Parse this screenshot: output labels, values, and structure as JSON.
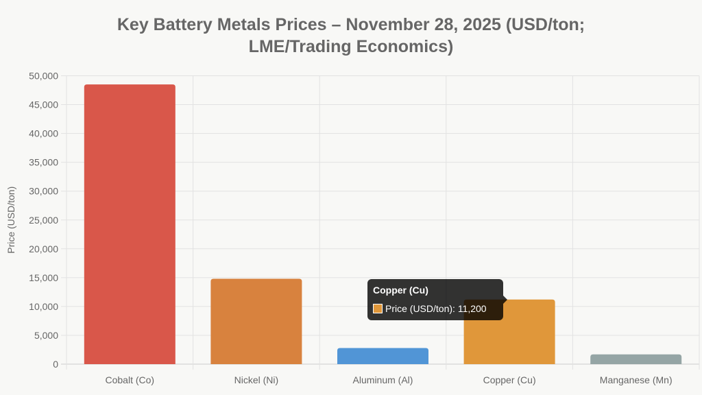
{
  "chart_data": {
    "type": "bar",
    "title_lines": [
      "Key Battery Metals Prices – November 28, 2025 (USD/ton;",
      "LME/Trading Economics)"
    ],
    "xlabel": "",
    "ylabel": "Price (USD/ton)",
    "categories": [
      "Cobalt (Co)",
      "Nickel (Ni)",
      "Aluminum (Al)",
      "Copper (Cu)",
      "Manganese (Mn)"
    ],
    "series": [
      {
        "name": "Price (USD/ton)",
        "values": [
          48500,
          14800,
          2800,
          11200,
          1700
        ]
      }
    ],
    "colors": [
      "#d9574a",
      "#d8823e",
      "#5195d6",
      "#e0973a",
      "#95a5a5"
    ],
    "ylim": [
      0,
      50000
    ],
    "yticks": [
      0,
      5000,
      10000,
      15000,
      20000,
      25000,
      30000,
      35000,
      40000,
      45000,
      50000
    ],
    "ytick_labels": [
      "0",
      "5,000",
      "10,000",
      "15,000",
      "20,000",
      "25,000",
      "30,000",
      "35,000",
      "40,000",
      "45,000",
      "50,000"
    ],
    "grid": true,
    "legend": "none",
    "tooltip": {
      "title": "Copper (Cu)",
      "label": "Price (USD/ton): ",
      "value": "11,200",
      "color": "#e0973a"
    }
  }
}
